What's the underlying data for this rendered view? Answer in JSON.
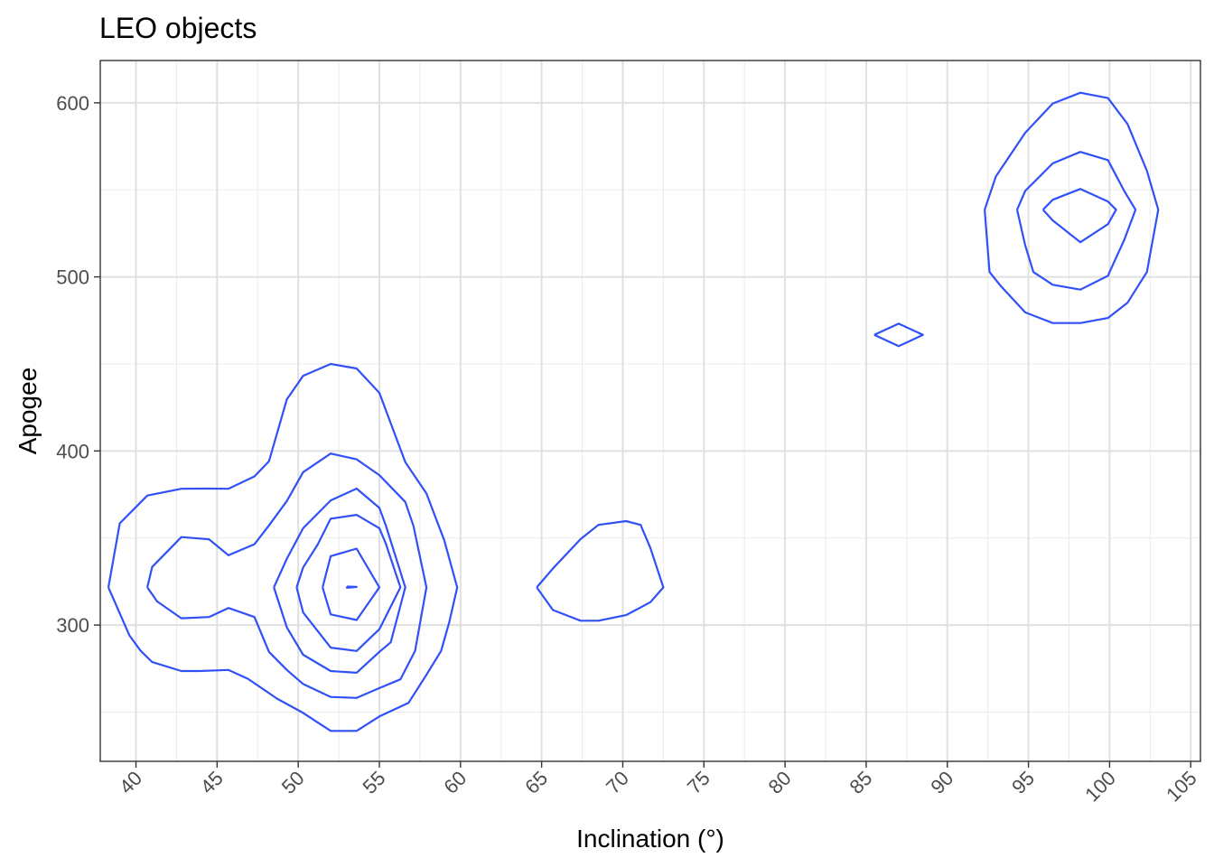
{
  "chart_data": {
    "type": "contour",
    "title": "LEO objects",
    "xlabel": "Inclination (°)",
    "ylabel": "Apogee",
    "xlim": [
      37.8,
      105.6
    ],
    "ylim": [
      221.7,
      624.3
    ],
    "x_ticks": [
      40,
      45,
      50,
      55,
      60,
      65,
      70,
      75,
      80,
      85,
      90,
      95,
      100,
      105
    ],
    "y_ticks": [
      300,
      400,
      500,
      600
    ],
    "x_tick_labels": [
      "40",
      "45",
      "50",
      "55",
      "60",
      "65",
      "70",
      "75",
      "80",
      "85",
      "90",
      "95",
      "100",
      "105"
    ],
    "y_tick_labels": [
      "300",
      "400",
      "500",
      "600"
    ],
    "grid": true,
    "line_color": "#3050F8",
    "contours": [
      {
        "points": [
          [
            38.3,
            321.6
          ],
          [
            39.0,
            358.4
          ],
          [
            40.7,
            374.4
          ],
          [
            42.8,
            378.3
          ],
          [
            44.5,
            378.4
          ],
          [
            45.7,
            378.3
          ],
          [
            47.3,
            385.4
          ],
          [
            48.2,
            394.1
          ],
          [
            49.3,
            429.7
          ],
          [
            50.3,
            443.2
          ],
          [
            52.0,
            450.0
          ],
          [
            53.6,
            447.4
          ],
          [
            55.0,
            433.4
          ],
          [
            56.6,
            393.6
          ],
          [
            57.9,
            375.6
          ],
          [
            59.0,
            348.7
          ],
          [
            59.8,
            321.6
          ],
          [
            59.3,
            301.3
          ],
          [
            58.8,
            285.1
          ],
          [
            57.9,
            271.4
          ],
          [
            56.8,
            255.3
          ],
          [
            55.0,
            247.5
          ],
          [
            53.6,
            239.2
          ],
          [
            52.0,
            239.2
          ],
          [
            50.3,
            249.5
          ],
          [
            48.7,
            257.7
          ],
          [
            46.9,
            269.1
          ],
          [
            45.7,
            274.2
          ],
          [
            43.9,
            273.6
          ],
          [
            42.8,
            273.6
          ],
          [
            41.0,
            278.7
          ],
          [
            40.3,
            285.1
          ],
          [
            39.6,
            294.0
          ],
          [
            38.3,
            321.6
          ]
        ]
      },
      {
        "points": [
          [
            40.7,
            321.6
          ],
          [
            41.0,
            333.4
          ],
          [
            42.8,
            350.5
          ],
          [
            44.5,
            349.3
          ],
          [
            45.7,
            340.1
          ],
          [
            47.3,
            346.4
          ],
          [
            48.2,
            357.2
          ],
          [
            49.3,
            371.3
          ],
          [
            50.3,
            387.8
          ],
          [
            52.0,
            398.5
          ],
          [
            53.6,
            395.2
          ],
          [
            55.0,
            386.1
          ],
          [
            56.6,
            370.7
          ],
          [
            57.1,
            357.0
          ],
          [
            57.9,
            321.6
          ],
          [
            57.2,
            285.1
          ],
          [
            56.3,
            268.8
          ],
          [
            55.0,
            263.8
          ],
          [
            53.6,
            258.1
          ],
          [
            52.0,
            258.7
          ],
          [
            50.3,
            266.1
          ],
          [
            49.3,
            274.2
          ],
          [
            48.2,
            284.6
          ],
          [
            47.3,
            304.6
          ],
          [
            45.7,
            309.8
          ],
          [
            44.5,
            304.6
          ],
          [
            42.8,
            303.9
          ],
          [
            41.3,
            313.6
          ],
          [
            40.7,
            321.6
          ]
        ]
      },
      {
        "points": [
          [
            48.5,
            321.6
          ],
          [
            49.3,
            338.1
          ],
          [
            50.3,
            355.6
          ],
          [
            52.0,
            371.6
          ],
          [
            53.6,
            378.4
          ],
          [
            55.0,
            367.3
          ],
          [
            55.4,
            357.1
          ],
          [
            56.6,
            321.6
          ],
          [
            55.7,
            290.1
          ],
          [
            55.0,
            284.6
          ],
          [
            53.6,
            272.6
          ],
          [
            52.0,
            273.6
          ],
          [
            50.3,
            282.9
          ],
          [
            49.3,
            298.6
          ],
          [
            48.5,
            321.6
          ]
        ]
      },
      {
        "points": [
          [
            49.9,
            321.6
          ],
          [
            50.3,
            333.1
          ],
          [
            51.2,
            346.2
          ],
          [
            52.0,
            361.1
          ],
          [
            53.6,
            363.3
          ],
          [
            55.0,
            355.6
          ],
          [
            55.4,
            346.7
          ],
          [
            56.3,
            321.6
          ],
          [
            55.0,
            297.6
          ],
          [
            53.6,
            285.1
          ],
          [
            52.0,
            287.0
          ],
          [
            50.3,
            307.2
          ],
          [
            49.9,
            321.6
          ]
        ]
      },
      {
        "points": [
          [
            51.5,
            321.6
          ],
          [
            52.0,
            339.6
          ],
          [
            53.6,
            343.9
          ],
          [
            55.0,
            321.6
          ],
          [
            53.6,
            302.9
          ],
          [
            52.0,
            306.1
          ],
          [
            51.5,
            321.6
          ]
        ]
      },
      {
        "points": [
          [
            53.0,
            322.1
          ],
          [
            53.6,
            321.9
          ],
          [
            53.0,
            321.4
          ],
          [
            53.0,
            322.1
          ]
        ]
      },
      {
        "points": [
          [
            64.7,
            321.6
          ],
          [
            65.7,
            332.5
          ],
          [
            67.4,
            349.4
          ],
          [
            68.5,
            357.5
          ],
          [
            70.2,
            359.7
          ],
          [
            71.1,
            357.5
          ],
          [
            71.7,
            344.3
          ],
          [
            72.5,
            321.6
          ],
          [
            71.7,
            313.1
          ],
          [
            70.2,
            305.7
          ],
          [
            68.5,
            302.5
          ],
          [
            67.4,
            302.5
          ],
          [
            65.7,
            308.6
          ],
          [
            64.7,
            321.6
          ]
        ]
      },
      {
        "points": [
          [
            85.5,
            466.7
          ],
          [
            87.0,
            473.1
          ],
          [
            88.5,
            466.7
          ],
          [
            87.0,
            460.2
          ],
          [
            85.5,
            466.7
          ]
        ]
      },
      {
        "points": [
          [
            92.3,
            538.6
          ],
          [
            93.0,
            557.8
          ],
          [
            94.8,
            582.8
          ],
          [
            96.5,
            599.6
          ],
          [
            98.2,
            605.8
          ],
          [
            99.9,
            602.7
          ],
          [
            101.1,
            587.9
          ],
          [
            102.3,
            561.0
          ],
          [
            103.0,
            538.6
          ],
          [
            102.3,
            502.8
          ],
          [
            101.1,
            485.1
          ],
          [
            99.9,
            476.4
          ],
          [
            98.2,
            473.5
          ],
          [
            96.5,
            473.5
          ],
          [
            94.8,
            479.6
          ],
          [
            93.3,
            494.7
          ],
          [
            92.6,
            502.8
          ],
          [
            92.3,
            538.6
          ]
        ]
      },
      {
        "points": [
          [
            94.3,
            538.6
          ],
          [
            94.8,
            549.4
          ],
          [
            96.5,
            565.2
          ],
          [
            98.2,
            571.8
          ],
          [
            99.9,
            567.1
          ],
          [
            100.9,
            549.4
          ],
          [
            101.6,
            538.6
          ],
          [
            100.9,
            521.2
          ],
          [
            100.0,
            502.8
          ],
          [
            99.9,
            500.6
          ],
          [
            98.2,
            492.7
          ],
          [
            96.5,
            495.5
          ],
          [
            95.3,
            502.8
          ],
          [
            94.8,
            518.1
          ],
          [
            94.3,
            538.6
          ]
        ]
      },
      {
        "points": [
          [
            95.9,
            538.6
          ],
          [
            96.5,
            544.3
          ],
          [
            98.2,
            550.5
          ],
          [
            99.9,
            543.3
          ],
          [
            100.4,
            538.6
          ],
          [
            99.9,
            530.3
          ],
          [
            98.2,
            519.9
          ],
          [
            96.5,
            532.4
          ],
          [
            95.9,
            538.6
          ]
        ]
      }
    ]
  }
}
